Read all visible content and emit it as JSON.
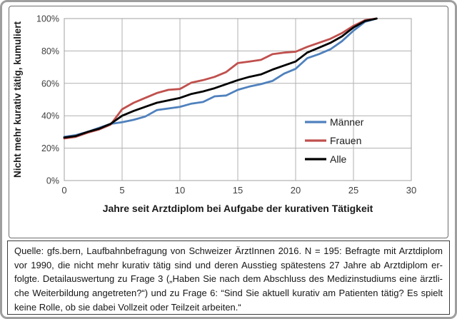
{
  "chart_data": {
    "type": "line",
    "title": "",
    "xlabel": "Jahre seit Arztdiplom bei Aufgabe der kurativen Tätigkeit",
    "ylabel": "Nicht mehr kurativ tätig, kumuliert",
    "xlim": [
      0,
      30
    ],
    "ylim": [
      0,
      100
    ],
    "x_ticks": [
      0,
      5,
      10,
      15,
      20,
      25,
      30
    ],
    "y_ticks": [
      {
        "value": 0,
        "label": "0%"
      },
      {
        "value": 20,
        "label": "20%"
      },
      {
        "value": 40,
        "label": "40%"
      },
      {
        "value": 60,
        "label": "60%"
      },
      {
        "value": 80,
        "label": "80%"
      },
      {
        "value": 100,
        "label": "100%"
      }
    ],
    "grid": true,
    "legend_position": "inside-right",
    "x": [
      0,
      1,
      2,
      3,
      4,
      5,
      6,
      7,
      8,
      9,
      10,
      11,
      12,
      13,
      14,
      15,
      16,
      17,
      18,
      19,
      20,
      21,
      22,
      23,
      24,
      25,
      26,
      27
    ],
    "series": [
      {
        "name": "Männer",
        "color": "#4F81BD",
        "values": [
          27,
          28,
          30,
          32.5,
          35,
          36,
          37.5,
          39.5,
          43.5,
          44.5,
          45.5,
          47.5,
          48.5,
          52,
          52.5,
          56,
          58,
          59.5,
          61.5,
          66,
          69,
          75.5,
          78,
          81,
          86,
          92.5,
          98,
          100
        ]
      },
      {
        "name": "Frauen",
        "color": "#C0504D",
        "values": [
          26,
          27,
          29.5,
          31.5,
          34.5,
          44,
          48,
          51,
          54,
          56,
          56.5,
          60.5,
          62,
          64,
          67,
          72.5,
          73.5,
          74.5,
          78,
          79,
          79.5,
          82.5,
          85,
          87.5,
          91,
          95.5,
          99,
          100
        ]
      },
      {
        "name": "Alle",
        "color": "#000000",
        "values": [
          26.5,
          27.5,
          30,
          32,
          35,
          40,
          43,
          45.5,
          48,
          49.5,
          51,
          53.5,
          55,
          57,
          59.5,
          62,
          64,
          65.5,
          68.5,
          71,
          73.5,
          79,
          82,
          85,
          89,
          94.5,
          98.5,
          100
        ]
      }
    ],
    "gridline_color": "#b0b0b0",
    "plot_border_color": "#a0a0a0",
    "tick_label_color": "#404040",
    "axis_title_color": "#1a1a1a"
  },
  "caption": {
    "lines": [
      "Quelle: gfs.bern, Laufbahnbefragung von Schweizer ÄrztInnen 2016.  N = 195: Befragte mit Arztdiplom",
      "vor 1990, die nicht mehr kurativ tätig sind und deren Ausstieg spätestens 27 Jahre ab Arztdiplom er-",
      "folgte. Detailauswertung zu Frage 3 („Haben Sie nach dem Abschluss des Medizinstudiums eine ärztli-",
      "che Weiterbildung angetreten?“) und zu Frage 6: “Sind Sie aktuell kurativ am Patienten tätig? Es spielt",
      "keine Rolle, ob sie dabei Vollzeit oder Teilzeit arbeiten.“"
    ]
  }
}
